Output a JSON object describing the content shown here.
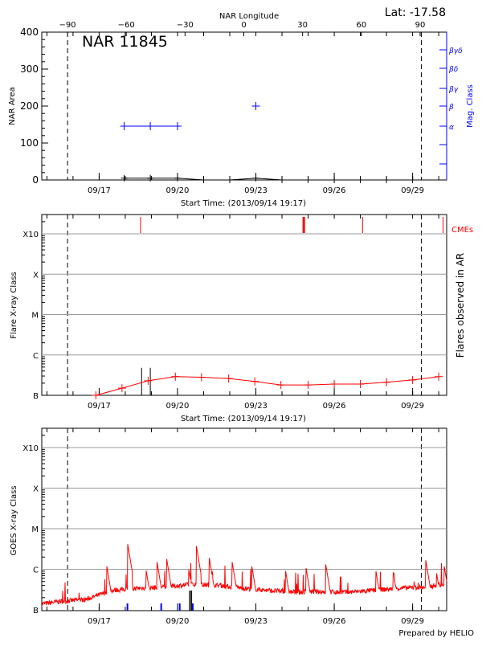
{
  "chart_data": [
    {
      "type": "line",
      "title": "NAR 11845",
      "lat_label": "Lat: -17.58",
      "xlabel": "Start Time: (2013/09/14 19:17)",
      "ylabel": "NAR Area",
      "top_axis_label": "NAR Longitude",
      "right_axis_label": "Mag. Class",
      "x_start": "2013-09-14T19:17",
      "x_end": "2013-09-30T07:17",
      "ylim": [
        0,
        400
      ],
      "yticks": [
        "0",
        "100",
        "200",
        "300",
        "400"
      ],
      "xticks": [
        {
          "date": "2013-09-17",
          "label": "09/17"
        },
        {
          "date": "2013-09-20",
          "label": "09/20"
        },
        {
          "date": "2013-09-23",
          "label": "09/23"
        },
        {
          "date": "2013-09-26",
          "label": "09/26"
        },
        {
          "date": "2013-09-29",
          "label": "09/29"
        }
      ],
      "longitude_ticks": [
        "-90",
        "-60",
        "-30",
        "0",
        "30",
        "60",
        "90"
      ],
      "limb_lines": [
        "2013-09-15T19:00",
        "2013-09-29T08:00"
      ],
      "mag_class_ticks": [
        "α",
        "β",
        "βγ",
        "βδ",
        "βγδ"
      ],
      "series": [
        {
          "name": "NAR Area",
          "color": "#000000",
          "x": [
            "2013-09-17T23:00",
            "2013-09-18T23:00",
            "2013-09-20T00:00",
            "2013-09-21T00:00",
            "2013-09-22T00:00",
            "2013-09-23T00:00",
            "2013-09-24T00:00",
            "2013-09-25T00:00",
            "2013-09-26T00:00",
            "2013-09-27T00:00",
            "2013-09-28T00:00",
            "2013-09-29T00:00"
          ],
          "y": [
            5,
            5,
            5,
            0,
            0,
            5,
            0,
            0,
            0,
            0,
            0,
            0
          ]
        },
        {
          "name": "Mag. Class",
          "color": "#0000ff",
          "x": [
            "2013-09-17T23:00",
            "2013-09-18T23:00",
            "2013-09-20T00:00",
            "2013-09-23T00:00"
          ],
          "y": [
            "α",
            "α",
            "α",
            "β"
          ]
        }
      ]
    },
    {
      "type": "line",
      "xlabel": "Start Time: (2013/09/14 19:17)",
      "ylabel": "Flare X-ray Class",
      "right_axis_label": "Flares observed in AR",
      "cme_label": "CMEs",
      "yticks": [
        "B",
        "C",
        "M",
        "X",
        "X10"
      ],
      "xticks": [
        "09/17",
        "09/20",
        "09/23",
        "09/26",
        "09/29"
      ],
      "series": [
        {
          "color": "#ff0000",
          "x": [
            "2013-09-16T21:00",
            "2013-09-17T21:00",
            "2013-09-18T21:00",
            "2013-09-19T22:00",
            "2013-09-20T22:00",
            "2013-09-21T23:00",
            "2013-09-22T23:00",
            "2013-09-23T23:00",
            "2013-09-25T00:00",
            "2013-09-26T00:00",
            "2013-09-27T00:00",
            "2013-09-28T00:00",
            "2013-09-29T00:00",
            "2013-09-30T00:00"
          ],
          "y": [
            1e-07,
            1.5e-07,
            2.3e-07,
            2.9e-07,
            2.8e-07,
            2.6e-07,
            2.2e-07,
            1.8e-07,
            1.8e-07,
            1.9e-07,
            1.9e-07,
            2.1e-07,
            2.4e-07,
            2.9e-07
          ]
        }
      ],
      "flares": [
        "2013-09-18T15:00",
        "2013-09-18T23:00"
      ],
      "flare_level": 4.8e-07,
      "cmes": [
        "2013-09-18T14:00",
        "2013-09-24T20:00",
        "2013-09-27T02:00",
        "2013-09-30T04:00"
      ]
    },
    {
      "type": "line",
      "ylabel": "GOES X-ray Class",
      "yticks": [
        "B",
        "C",
        "M",
        "X",
        "X10"
      ],
      "xticks": [
        "09/17",
        "09/20",
        "09/23",
        "09/26",
        "09/29"
      ],
      "series": [
        {
          "color": "#ff0000",
          "baseline_x": [
            "2013-09-14T19:17",
            "2013-09-15T12:00",
            "2013-09-16T12:00",
            "2013-09-17T12:00",
            "2013-09-18T12:00",
            "2013-09-19T12:00",
            "2013-09-20T12:00",
            "2013-09-21T12:00",
            "2013-09-22T12:00",
            "2013-09-23T12:00",
            "2013-09-24T12:00",
            "2013-09-25T12:00",
            "2013-09-26T12:00",
            "2013-09-27T12:00",
            "2013-09-28T12:00",
            "2013-09-29T12:00",
            "2013-09-30T07:17"
          ],
          "baseline_y": [
            1.4e-07,
            1.6e-07,
            1.8e-07,
            3e-07,
            3.4e-07,
            3.6e-07,
            4.2e-07,
            4e-07,
            3.4e-07,
            3e-07,
            2.7e-07,
            2.8e-07,
            2.7e-07,
            3e-07,
            3.4e-07,
            3.6e-07,
            4.5e-07
          ],
          "peaks_x": [
            "2013-09-17T07:00",
            "2013-09-18T02:00",
            "2013-09-18T19:00",
            "2013-09-19T05:00",
            "2013-09-19T14:00",
            "2013-09-20T10:00",
            "2013-09-20T17:00",
            "2013-09-21T05:00",
            "2013-09-22T02:00",
            "2013-09-22T20:00",
            "2013-09-24T03:00",
            "2013-09-24T22:00",
            "2013-09-25T16:00",
            "2013-09-27T14:00",
            "2013-09-28T06:00",
            "2013-09-29T12:00",
            "2013-09-29T22:00",
            "2013-09-30T05:00"
          ],
          "peaks_y": [
            1.2e-06,
            4.5e-06,
            1e-06,
            1.6e-06,
            1.8e-06,
            1.1e-06,
            4.2e-06,
            2e-06,
            1.6e-06,
            1.3e-06,
            1e-06,
            1.1e-06,
            1.4e-06,
            1e-06,
            9e-07,
            1.7e-06,
            8e-07,
            1.2e-06
          ]
        }
      ],
      "flare_markers_blue": [
        "2013-09-18T02:00",
        "2013-09-19T09:00",
        "2013-09-20T02:00",
        "2013-09-20T14:00"
      ],
      "flare_markers_black": [
        "2013-09-20T11:00",
        "2013-09-20T12:00",
        "2013-09-20T13:00"
      ]
    }
  ],
  "footer": {
    "credit": "Prepared by HELIO"
  }
}
